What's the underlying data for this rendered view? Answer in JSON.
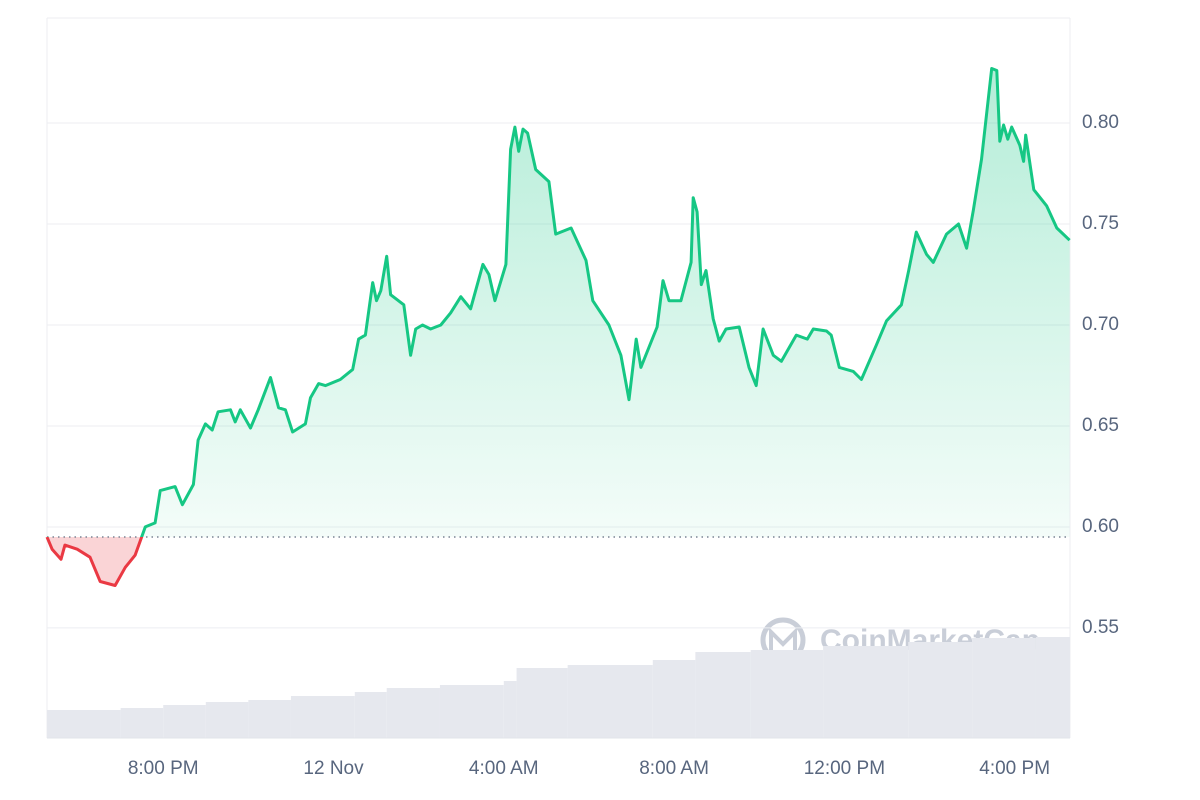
{
  "chart_data": {
    "type": "line",
    "x": [
      17.27,
      17.39,
      17.6,
      17.69,
      17.98,
      18.28,
      18.52,
      18.87,
      19.11,
      19.34,
      19.58,
      19.81,
      19.93,
      20.28,
      20.45,
      20.71,
      20.82,
      20.99,
      21.15,
      21.29,
      21.58,
      21.69,
      21.81,
      22.05,
      22.23,
      22.52,
      22.71,
      22.87,
      23.04,
      23.34,
      23.46,
      23.65,
      23.81,
      24.16,
      24.45,
      24.59,
      24.75,
      24.92,
      25.01,
      25.11,
      25.25,
      25.34,
      25.65,
      25.81,
      25.93,
      26.09,
      26.28,
      26.52,
      26.75,
      26.99,
      27.22,
      27.51,
      27.65,
      27.79,
      28.05,
      28.16,
      28.26,
      28.35,
      28.45,
      28.56,
      28.75,
      29.06,
      29.22,
      29.58,
      29.93,
      30.09,
      30.47,
      30.75,
      30.94,
      31.11,
      31.22,
      31.6,
      31.74,
      31.88,
      32.16,
      32.4,
      32.45,
      32.54,
      32.64,
      32.75,
      32.92,
      33.06,
      33.22,
      33.53,
      33.76,
      33.93,
      34.09,
      34.33,
      34.52,
      34.87,
      35.13,
      35.27,
      35.58,
      35.69,
      35.88,
      36.21,
      36.4,
      36.75,
      36.99,
      37.34,
      37.51,
      37.69,
      37.93,
      38.09,
      38.4,
      38.68,
      38.87,
      39.03,
      39.22,
      39.46,
      39.58,
      39.65,
      39.74,
      39.84,
      39.93,
      40.12,
      40.21,
      40.26,
      40.45,
      40.75,
      40.99,
      41.29
    ],
    "values": [
      0.595,
      0.589,
      0.584,
      0.591,
      0.589,
      0.585,
      0.573,
      0.571,
      0.58,
      0.586,
      0.6,
      0.602,
      0.618,
      0.62,
      0.611,
      0.621,
      0.643,
      0.651,
      0.648,
      0.657,
      0.658,
      0.652,
      0.658,
      0.649,
      0.658,
      0.674,
      0.659,
      0.658,
      0.647,
      0.651,
      0.664,
      0.671,
      0.67,
      0.673,
      0.678,
      0.693,
      0.695,
      0.721,
      0.712,
      0.717,
      0.734,
      0.715,
      0.71,
      0.685,
      0.698,
      0.7,
      0.698,
      0.7,
      0.706,
      0.714,
      0.708,
      0.73,
      0.725,
      0.712,
      0.73,
      0.787,
      0.798,
      0.786,
      0.797,
      0.795,
      0.777,
      0.771,
      0.745,
      0.748,
      0.732,
      0.712,
      0.7,
      0.685,
      0.663,
      0.693,
      0.679,
      0.699,
      0.722,
      0.712,
      0.712,
      0.731,
      0.763,
      0.756,
      0.72,
      0.727,
      0.703,
      0.692,
      0.698,
      0.699,
      0.679,
      0.67,
      0.698,
      0.685,
      0.682,
      0.695,
      0.693,
      0.698,
      0.697,
      0.695,
      0.679,
      0.677,
      0.673,
      0.69,
      0.702,
      0.71,
      0.727,
      0.746,
      0.735,
      0.731,
      0.745,
      0.75,
      0.738,
      0.757,
      0.782,
      0.827,
      0.826,
      0.791,
      0.799,
      0.792,
      0.798,
      0.789,
      0.781,
      0.794,
      0.767,
      0.759,
      0.748,
      0.742
    ],
    "baseline": 0.595,
    "colors": {
      "up": "#16c784",
      "down": "#ea3943",
      "volume": "#e6e8ee"
    },
    "volume": {
      "x": [
        17.27,
        19.0,
        20.0,
        21.0,
        22.0,
        23.0,
        24.5,
        25.25,
        26.5,
        28.0,
        28.3,
        29.5,
        31.5,
        32.5,
        33.8,
        35.5,
        37.5,
        39.0,
        40.5
      ],
      "values": [
        28,
        30,
        33,
        36,
        38,
        42,
        46,
        50,
        53,
        57,
        70,
        73,
        78,
        86,
        88,
        92,
        96,
        100,
        101
      ]
    },
    "xlim": [
      17.27,
      41.3
    ],
    "xticks": [
      {
        "value": 20,
        "label": "8:00 PM"
      },
      {
        "value": 24,
        "label": "12 Nov"
      },
      {
        "value": 28,
        "label": "4:00 AM"
      },
      {
        "value": 32,
        "label": "8:00 AM"
      },
      {
        "value": 36,
        "label": "12:00 PM"
      },
      {
        "value": 40,
        "label": "4:00 PM"
      }
    ],
    "ylim": [
      0.4955,
      0.852
    ],
    "yticks": [
      0.55,
      {
        "value": 0.6,
        "label": "0.60"
      },
      0.65,
      {
        "value": 0.7,
        "label": "0.70"
      },
      0.75,
      {
        "value": 0.8,
        "label": "0.80"
      }
    ],
    "grid": true,
    "watermark": "CoinMarketCap"
  }
}
